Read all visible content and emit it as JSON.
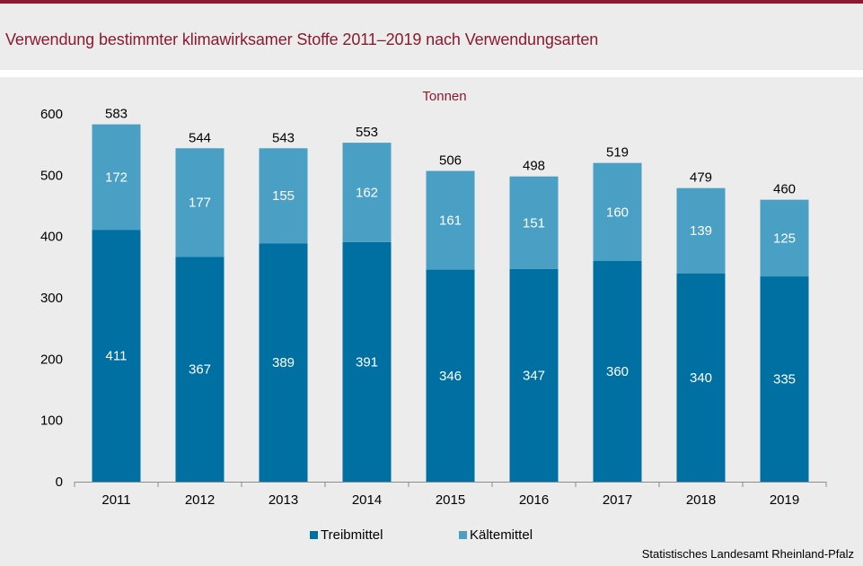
{
  "title": "Verwendung bestimmter klimawirksamer Stoffe 2011–2019 nach Verwendungsarten",
  "source": "Statistisches Landesamt Rheinland-Pfalz",
  "colors": {
    "accent": "#8b1a2e",
    "treibmittel": "#0070a3",
    "kaeltemittel": "#4a9fc4"
  },
  "chart_data": {
    "type": "bar",
    "stacked": true,
    "unit_label": "Tonnen",
    "categories": [
      "2011",
      "2012",
      "2013",
      "2014",
      "2015",
      "2016",
      "2017",
      "2018",
      "2019"
    ],
    "series": [
      {
        "name": "Treibmittel",
        "color": "#0070a3",
        "values": [
          411,
          367,
          389,
          391,
          346,
          347,
          360,
          340,
          335
        ]
      },
      {
        "name": "Kältemittel",
        "color": "#4a9fc4",
        "values": [
          172,
          177,
          155,
          162,
          161,
          151,
          160,
          139,
          125
        ]
      }
    ],
    "totals": [
      583,
      544,
      543,
      553,
      506,
      498,
      519,
      479,
      460
    ],
    "ylim": [
      0,
      600
    ],
    "yticks": [
      0,
      100,
      200,
      300,
      400,
      500,
      600
    ],
    "grid": false,
    "legend_position": "bottom"
  }
}
